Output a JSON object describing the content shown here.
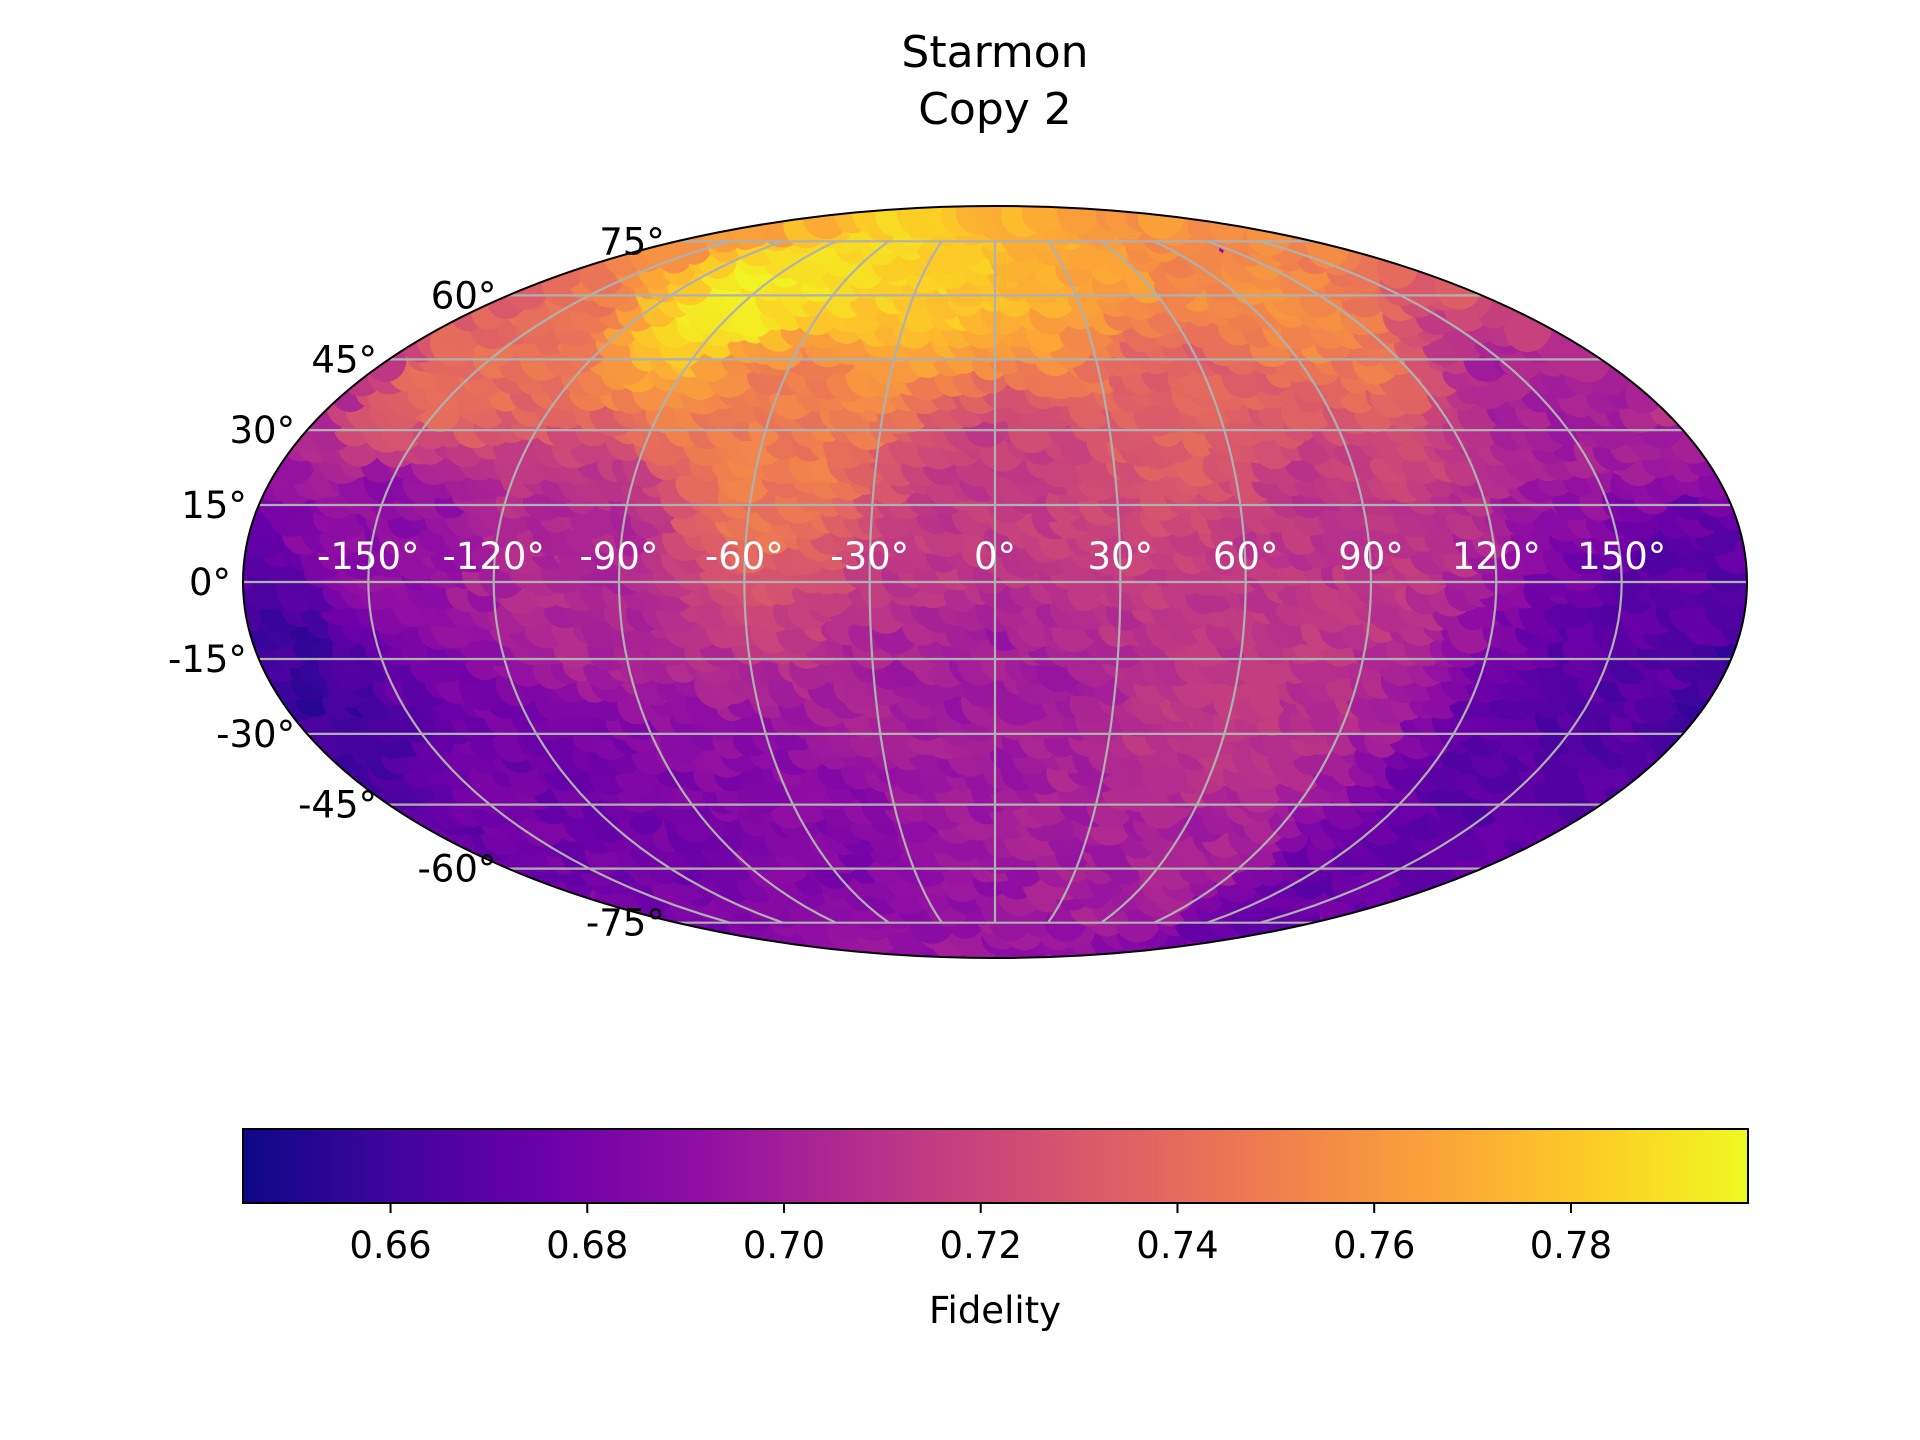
{
  "chart_data": {
    "type": "heatmap",
    "projection": "mollweide",
    "title": [
      "Starmon",
      "Copy 2"
    ],
    "colorbar": {
      "label": "Fidelity",
      "orientation": "horizontal",
      "range": [
        0.645,
        0.798
      ],
      "colormap": "plasma",
      "ticks": [
        {
          "value": 0.66,
          "label": "0.66"
        },
        {
          "value": 0.68,
          "label": "0.68"
        },
        {
          "value": 0.7,
          "label": "0.70"
        },
        {
          "value": 0.72,
          "label": "0.72"
        },
        {
          "value": 0.74,
          "label": "0.74"
        },
        {
          "value": 0.76,
          "label": "0.76"
        },
        {
          "value": 0.78,
          "label": "0.78"
        }
      ]
    },
    "longitude_ticks": [
      {
        "value": -150,
        "label": "-150°"
      },
      {
        "value": -120,
        "label": "-120°"
      },
      {
        "value": -90,
        "label": "-90°"
      },
      {
        "value": -60,
        "label": "-60°"
      },
      {
        "value": -30,
        "label": "-30°"
      },
      {
        "value": 0,
        "label": "0°"
      },
      {
        "value": 30,
        "label": "30°"
      },
      {
        "value": 60,
        "label": "60°"
      },
      {
        "value": 90,
        "label": "90°"
      },
      {
        "value": 120,
        "label": "120°"
      },
      {
        "value": 150,
        "label": "150°"
      }
    ],
    "latitude_ticks": [
      {
        "value": 75,
        "label": "75°"
      },
      {
        "value": 60,
        "label": "60°"
      },
      {
        "value": 45,
        "label": "45°"
      },
      {
        "value": 30,
        "label": "30°"
      },
      {
        "value": 15,
        "label": "15°"
      },
      {
        "value": 0,
        "label": "0°"
      },
      {
        "value": -15,
        "label": "-15°"
      },
      {
        "value": -30,
        "label": "-30°"
      },
      {
        "value": -45,
        "label": "-45°"
      },
      {
        "value": -60,
        "label": "-60°"
      },
      {
        "value": -75,
        "label": "-75°"
      }
    ],
    "grid": true,
    "grid_color": "#b0b0b0",
    "field_samples": [
      {
        "lon": -90,
        "lat": 65,
        "value": 0.792
      },
      {
        "lon": -30,
        "lat": 70,
        "value": 0.785
      },
      {
        "lon": 30,
        "lat": 72,
        "value": 0.77
      },
      {
        "lon": 100,
        "lat": 65,
        "value": 0.755
      },
      {
        "lon": -150,
        "lat": 45,
        "value": 0.742
      },
      {
        "lon": -60,
        "lat": 35,
        "value": 0.748
      },
      {
        "lon": 60,
        "lat": 40,
        "value": 0.735
      },
      {
        "lon": 160,
        "lat": 35,
        "value": 0.7
      },
      {
        "lon": 0,
        "lat": 15,
        "value": 0.715
      },
      {
        "lon": -100,
        "lat": 5,
        "value": 0.705
      },
      {
        "lon": 80,
        "lat": 10,
        "value": 0.712
      },
      {
        "lon": 170,
        "lat": 0,
        "value": 0.67
      },
      {
        "lon": -170,
        "lat": -15,
        "value": 0.658
      },
      {
        "lon": -120,
        "lat": -40,
        "value": 0.678
      },
      {
        "lon": 0,
        "lat": -20,
        "value": 0.698
      },
      {
        "lon": 60,
        "lat": -25,
        "value": 0.712
      },
      {
        "lon": 150,
        "lat": -30,
        "value": 0.668
      },
      {
        "lon": -60,
        "lat": -60,
        "value": 0.685
      },
      {
        "lon": 50,
        "lat": -60,
        "value": 0.7
      },
      {
        "lon": 140,
        "lat": -65,
        "value": 0.675
      },
      {
        "lon": 0,
        "lat": -80,
        "value": 0.695
      },
      {
        "lon": -150,
        "lat": 10,
        "value": 0.69
      }
    ]
  }
}
